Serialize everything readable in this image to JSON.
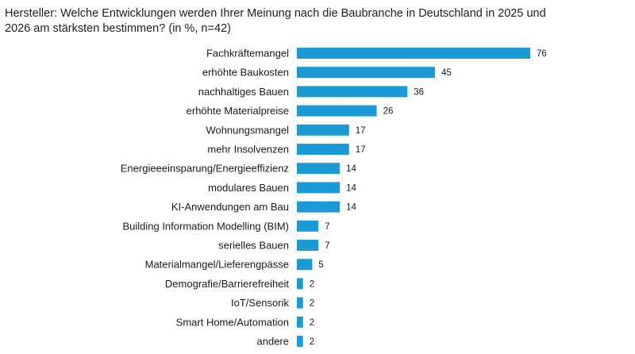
{
  "chart_data": {
    "type": "bar",
    "orientation": "horizontal",
    "title": "Hersteller: Welche Entwicklungen werden Ihrer Meinung nach die Baubranche in Deutschland in 2025 und 2026 am stärksten bestimmen? (in %, n=42)",
    "categories": [
      "Fachkräftemangel",
      "erhöhte Baukosten",
      "nachhaltiges Bauen",
      "erhöhte Materialpreise",
      "Wohnungsmangel",
      "mehr Insolvenzen",
      "Energieeeinsparung/Energieeffizienz",
      "modulares Bauen",
      "KI-Anwendungen am Bau",
      "Building Information Modelling (BIM)",
      "serielles Bauen",
      "Materialmangel/Lieferengpässe",
      "Demografie/Barrierefreiheit",
      "IoT/Sensorik",
      "Smart Home/Automation",
      "andere"
    ],
    "values": [
      76,
      45,
      36,
      26,
      17,
      17,
      14,
      14,
      14,
      7,
      7,
      5,
      2,
      2,
      2,
      2
    ],
    "xlim": [
      0,
      76
    ],
    "grid": false,
    "bar_color": "#1b9ad6",
    "data_labels": true
  }
}
